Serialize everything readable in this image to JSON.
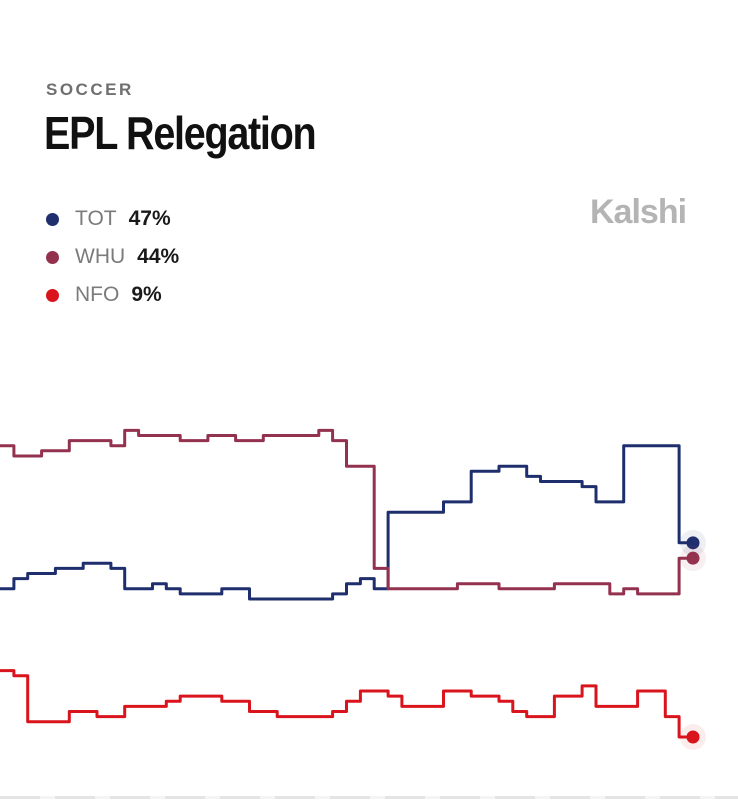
{
  "header": {
    "category": "SOCCER",
    "title": "EPL Relegation"
  },
  "brand": {
    "name": "Kalshi"
  },
  "legend": [
    {
      "code": "TOT",
      "value": "47%",
      "color": "#1f2f6e"
    },
    {
      "code": "WHU",
      "value": "44%",
      "color": "#93324f"
    },
    {
      "code": "NFO",
      "value": "9%",
      "color": "#d9141c"
    }
  ],
  "chart_data": {
    "type": "line",
    "title": "EPL Relegation",
    "xlabel": "",
    "ylabel": "",
    "ylim": [
      0,
      100
    ],
    "grid": false,
    "legend_position": "top-left",
    "x": [
      0,
      2,
      4,
      6,
      8,
      10,
      12,
      14,
      16,
      18,
      20,
      22,
      24,
      26,
      28,
      30,
      32,
      34,
      36,
      38,
      40,
      42,
      44,
      46,
      48,
      50,
      52,
      54,
      56,
      58,
      60,
      62,
      64,
      66,
      68,
      70,
      72,
      74,
      76,
      78,
      80,
      82,
      84,
      86,
      88,
      90,
      92,
      94,
      96,
      98,
      100
    ],
    "series": [
      {
        "name": "TOT",
        "color": "#1f2f6e",
        "values": [
          38,
          40,
          41,
          41,
          42,
          42,
          43,
          43,
          42,
          38,
          38,
          39,
          38,
          37,
          37,
          37,
          38,
          38,
          36,
          36,
          36,
          36,
          36,
          36,
          37,
          39,
          40,
          38,
          53,
          53,
          53,
          53,
          55,
          55,
          61,
          61,
          62,
          62,
          60,
          59,
          59,
          59,
          58,
          55,
          55,
          66,
          66,
          66,
          66,
          47,
          47
        ]
      },
      {
        "name": "WHU",
        "color": "#93324f",
        "values": [
          66,
          64,
          64,
          65,
          65,
          67,
          67,
          67,
          66,
          69,
          68,
          68,
          68,
          67,
          67,
          68,
          68,
          67,
          67,
          68,
          68,
          68,
          68,
          69,
          67,
          62,
          62,
          42,
          38,
          38,
          38,
          38,
          38,
          39,
          39,
          39,
          38,
          38,
          38,
          38,
          39,
          39,
          39,
          39,
          37,
          38,
          37,
          37,
          37,
          44,
          44
        ]
      },
      {
        "name": "NFO",
        "color": "#d9141c",
        "values": [
          22,
          21,
          12,
          12,
          12,
          14,
          14,
          13,
          13,
          15,
          15,
          15,
          16,
          17,
          17,
          17,
          16,
          16,
          14,
          14,
          13,
          13,
          13,
          13,
          14,
          16,
          18,
          18,
          17,
          15,
          15,
          15,
          18,
          18,
          17,
          17,
          16,
          14,
          13,
          13,
          17,
          17,
          19,
          15,
          15,
          15,
          18,
          18,
          13,
          9,
          9
        ]
      }
    ]
  }
}
